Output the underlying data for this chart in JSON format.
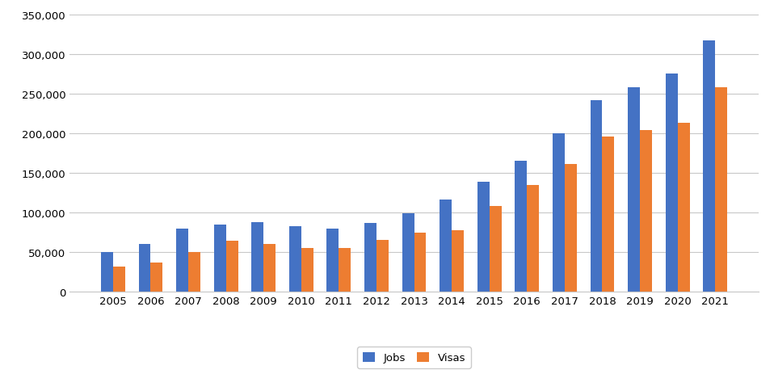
{
  "years": [
    2005,
    2006,
    2007,
    2008,
    2009,
    2010,
    2011,
    2012,
    2013,
    2014,
    2015,
    2016,
    2017,
    2018,
    2019,
    2020,
    2021
  ],
  "jobs": [
    50000,
    60000,
    79000,
    85000,
    88000,
    82000,
    79000,
    87000,
    99000,
    116000,
    139000,
    165000,
    200000,
    242000,
    258000,
    275000,
    317000
  ],
  "visas": [
    32000,
    37000,
    50000,
    64000,
    60000,
    55000,
    55000,
    65000,
    74000,
    77000,
    108000,
    134000,
    161000,
    196000,
    204000,
    213000,
    258000
  ],
  "jobs_color": "#4472C4",
  "visas_color": "#ED7D31",
  "ylim": [
    0,
    350000
  ],
  "yticks": [
    0,
    50000,
    100000,
    150000,
    200000,
    250000,
    300000,
    350000
  ],
  "background_color": "#ffffff",
  "grid_color": "#c8c8c8",
  "legend_labels": [
    "Jobs",
    "Visas"
  ],
  "bar_width": 0.32
}
